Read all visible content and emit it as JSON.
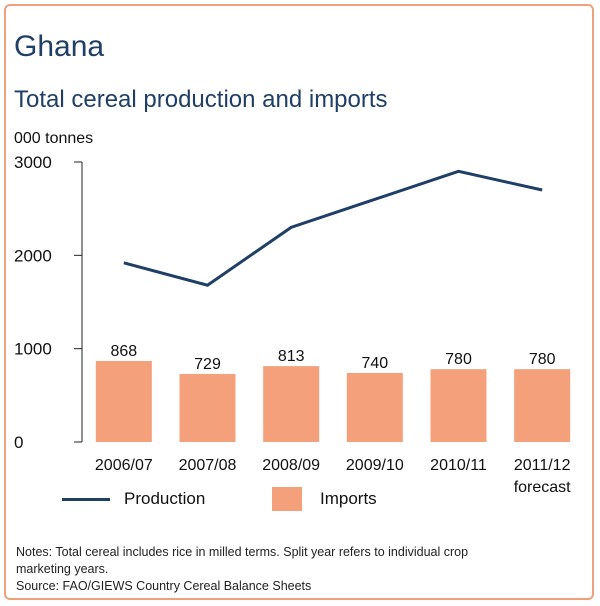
{
  "header": {
    "title": "Ghana",
    "subtitle": "Total cereal production and imports",
    "unit": "000 tonnes"
  },
  "legend": {
    "production": "Production",
    "imports": "Imports"
  },
  "notes": {
    "line1": "Notes: Total cereal includes rice in milled terms. Split year refers to individual crop",
    "line2": "marketing years.",
    "line3": "Source: FAO/GIEWS Country Cereal Balance Sheets"
  },
  "colors": {
    "production": "#1f3f66",
    "imports": "#f4a07a",
    "border": "#f0a07a"
  },
  "chart_data": {
    "type": "bar",
    "categories": [
      "2006/07",
      "2007/08",
      "2008/09",
      "2009/10",
      "2010/11",
      "2011/12"
    ],
    "category_sublabels": [
      "",
      "",
      "",
      "",
      "",
      "forecast"
    ],
    "ylim": [
      0,
      3000
    ],
    "yticks": [
      0,
      1000,
      2000,
      3000
    ],
    "ylabel": "000 tonnes",
    "xlabel": "",
    "grid": false,
    "legend_position": "bottom",
    "series": [
      {
        "name": "Imports",
        "type": "bar",
        "values": [
          868,
          729,
          813,
          740,
          780,
          780
        ],
        "data_labels": [
          "868",
          "729",
          "813",
          "740",
          "780",
          "780"
        ]
      },
      {
        "name": "Production",
        "type": "line",
        "values": [
          1920,
          1680,
          2300,
          2600,
          2900,
          2700
        ]
      }
    ]
  }
}
